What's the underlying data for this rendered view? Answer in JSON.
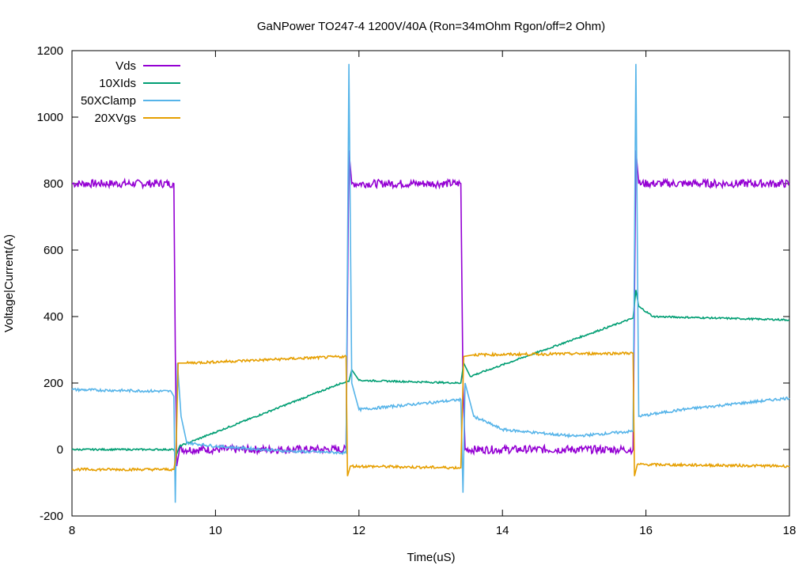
{
  "chart_data": {
    "type": "line",
    "title": "GaNPower TO247-4 1200V/40A (Ron=34mOhm Rgon/off=2 Ohm)",
    "xlabel": "Time(uS)",
    "ylabel": "Voltage|Current(A)",
    "xlim": [
      8,
      18
    ],
    "ylim": [
      -200,
      1200
    ],
    "xticks": [
      8,
      10,
      12,
      14,
      16,
      18
    ],
    "yticks": [
      -200,
      0,
      200,
      400,
      600,
      800,
      1000,
      1200
    ],
    "grid": false,
    "legend": "top-left",
    "series": [
      {
        "name": "Vds",
        "color": "#9400d3",
        "points": [
          [
            8.0,
            800
          ],
          [
            9.42,
            800
          ],
          [
            9.44,
            300
          ],
          [
            9.46,
            -50
          ],
          [
            9.5,
            0
          ],
          [
            11.82,
            0
          ],
          [
            11.86,
            900
          ],
          [
            11.9,
            800
          ],
          [
            13.42,
            800
          ],
          [
            13.45,
            200
          ],
          [
            13.48,
            0
          ],
          [
            15.82,
            0
          ],
          [
            15.86,
            900
          ],
          [
            15.9,
            800
          ],
          [
            18.0,
            800
          ]
        ]
      },
      {
        "name": "10XIds",
        "color": "#009e73",
        "points": [
          [
            8.0,
            0
          ],
          [
            9.42,
            0
          ],
          [
            9.45,
            -20
          ],
          [
            9.5,
            10
          ],
          [
            11.82,
            205
          ],
          [
            11.86,
            205
          ],
          [
            11.9,
            240
          ],
          [
            12.0,
            208
          ],
          [
            13.42,
            200
          ],
          [
            13.46,
            260
          ],
          [
            13.55,
            220
          ],
          [
            15.82,
            395
          ],
          [
            15.86,
            480
          ],
          [
            15.9,
            430
          ],
          [
            16.1,
            400
          ],
          [
            18.0,
            390
          ]
        ]
      },
      {
        "name": "50XClamp",
        "color": "#56b4e9",
        "points": [
          [
            8.0,
            180
          ],
          [
            9.38,
            175
          ],
          [
            9.42,
            160
          ],
          [
            9.44,
            -160
          ],
          [
            9.47,
            260
          ],
          [
            9.52,
            100
          ],
          [
            9.6,
            20
          ],
          [
            10.0,
            10
          ],
          [
            11.0,
            -5
          ],
          [
            11.82,
            -10
          ],
          [
            11.86,
            1160
          ],
          [
            11.9,
            200
          ],
          [
            12.0,
            120
          ],
          [
            13.42,
            150
          ],
          [
            13.45,
            -130
          ],
          [
            13.48,
            200
          ],
          [
            13.6,
            100
          ],
          [
            14.0,
            60
          ],
          [
            15.0,
            40
          ],
          [
            15.82,
            55
          ],
          [
            15.86,
            1160
          ],
          [
            15.9,
            100
          ],
          [
            16.5,
            120
          ],
          [
            18.0,
            155
          ]
        ]
      },
      {
        "name": "20XVgs",
        "color": "#e69f00",
        "points": [
          [
            8.0,
            -60
          ],
          [
            9.42,
            -60
          ],
          [
            9.45,
            -20
          ],
          [
            9.48,
            260
          ],
          [
            9.6,
            260
          ],
          [
            11.82,
            280
          ],
          [
            11.84,
            -80
          ],
          [
            11.88,
            -50
          ],
          [
            13.42,
            -55
          ],
          [
            13.46,
            280
          ],
          [
            13.6,
            285
          ],
          [
            15.82,
            290
          ],
          [
            15.84,
            -80
          ],
          [
            15.88,
            -45
          ],
          [
            18.0,
            -50
          ]
        ]
      }
    ]
  }
}
